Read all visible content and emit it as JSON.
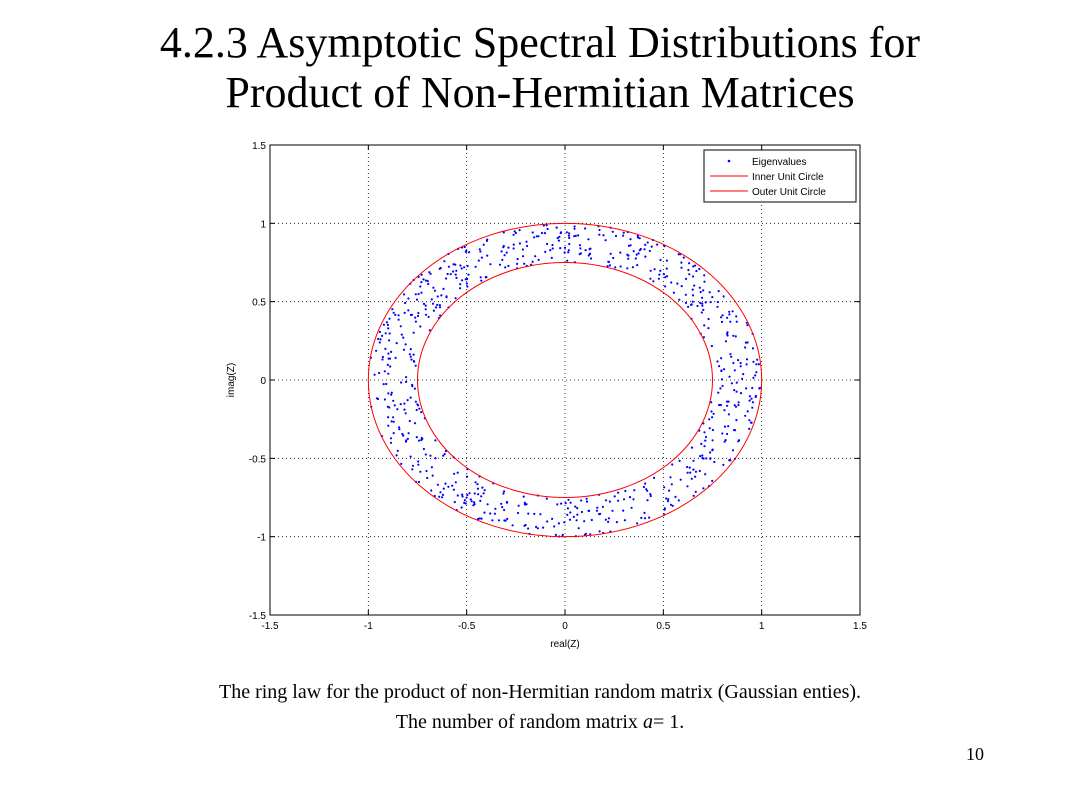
{
  "title": {
    "line1": "4.2.3  Asymptotic Spectral Distributions for",
    "line2": "Product of  Non-Hermitian Matrices"
  },
  "caption": {
    "line1": "The ring law for the product of non-Hermitian random matrix (Gaussian enties).",
    "line2_prefix": "The number of random matrix  ",
    "line2_var": "a",
    "line2_suffix": "= 1."
  },
  "page_number": "10",
  "chart_data": {
    "type": "scatter",
    "xlabel": "real(Z)",
    "ylabel": "imag(Z)",
    "xlim": [
      -1.5,
      1.5
    ],
    "ylim": [
      -1.5,
      1.5
    ],
    "xticks": [
      "-1.5",
      "-1",
      "-0.5",
      "0",
      "0.5",
      "1",
      "1.5"
    ],
    "yticks": [
      "1.5",
      "1",
      "0.5",
      "0",
      "-0.5",
      "-1",
      "-1.5"
    ],
    "grid": true,
    "legend_position": "top-right",
    "series": [
      {
        "name": "Eigenvalues",
        "kind": "scatter",
        "color": "#0000ff",
        "distribution": "uniform-annulus",
        "inner_radius": 0.75,
        "outer_radius": 1.0,
        "count": 750
      },
      {
        "name": "Inner Unit Circle",
        "kind": "circle",
        "color": "#ff0000",
        "radius": 0.75
      },
      {
        "name": "Outer Unit Circle",
        "kind": "circle",
        "color": "#ff0000",
        "radius": 1.0
      }
    ]
  }
}
